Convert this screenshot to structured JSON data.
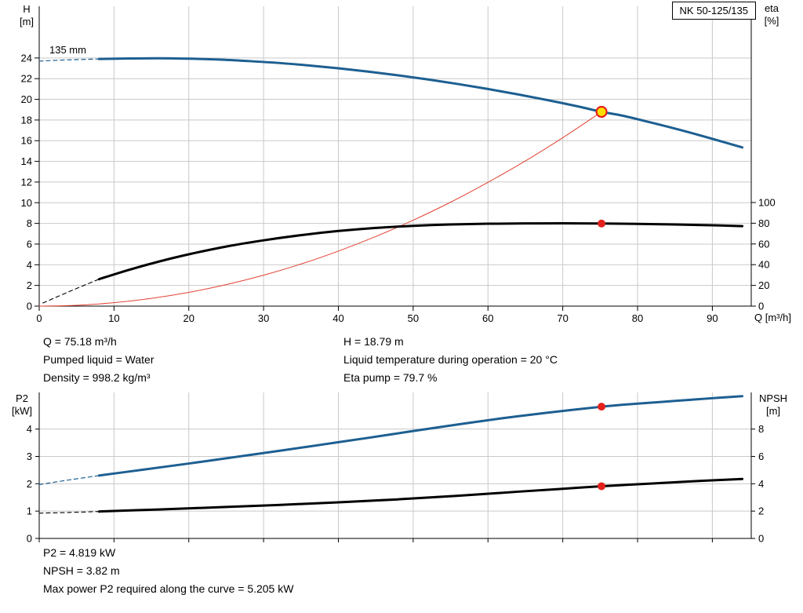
{
  "top_chart": {
    "pump_name": "NK 50-125/135",
    "impeller_label": "135 mm",
    "left_axis_title_1": "H",
    "left_axis_title_2": "[m]",
    "right_axis_title_1": "eta",
    "right_axis_title_2": "[%]",
    "x_axis_title": "Q [m³/h]"
  },
  "bottom_chart": {
    "left_axis_title_1": "P2",
    "left_axis_title_2": "[kW]",
    "right_axis_title_1": "NPSH",
    "right_axis_title_2": "[m]"
  },
  "top_info": {
    "col1": [
      "Q = 75.18 m³/h",
      "Pumped liquid = Water",
      "Density = 998.2 kg/m³"
    ],
    "col2": [
      "H = 18.79 m",
      "Liquid temperature during operation = 20 °C",
      "Eta pump = 79.7 %"
    ]
  },
  "bottom_info": [
    "P2 = 4.819 kW",
    "NPSH = 3.82 m",
    "Max power P2 required along the curve = 5.205 kW"
  ],
  "colors": {
    "grid": "#c9c9c9",
    "axis": "#000000",
    "curve_blue": "#1d5f91",
    "curve_black": "#000000",
    "system_red": "#e34234",
    "duty_yellow": "#ffdf00",
    "duty_red": "#e3211c"
  },
  "chart_data": [
    {
      "id": "hq",
      "type": "line",
      "title": "NK 50-125/135 — head (H) and efficiency (eta) vs flow (Q)",
      "xlabel": "Q [m³/h]",
      "ylabel_left": "H [m]",
      "ylabel_right": "eta [%]",
      "legend": "none",
      "grid": true,
      "x": {
        "min": 0,
        "max": 95.2,
        "ticks": [
          0,
          10,
          20,
          30,
          40,
          50,
          60,
          70,
          80,
          90
        ],
        "show_tick_labels": true
      },
      "y_left": {
        "min": 0,
        "max": 29,
        "ticks": [
          0,
          2,
          4,
          6,
          8,
          10,
          12,
          14,
          16,
          18,
          20,
          22,
          24
        ]
      },
      "y_right": {
        "min": 0,
        "max": 289.4,
        "ticks": [
          0,
          20,
          40,
          60,
          80,
          100
        ]
      },
      "series": [
        {
          "name": "h-curve-dashed-extension",
          "axis": "left",
          "color": "#1d5f91",
          "width": 1.2,
          "dashed": true,
          "x": [
            0,
            4,
            8
          ],
          "y": [
            23.7,
            23.82,
            23.9
          ]
        },
        {
          "name": "eta-curve-dashed-extension",
          "axis": "right",
          "color": "#000000",
          "width": 1.1,
          "dashed": true,
          "x": [
            0.5,
            4,
            8
          ],
          "y": [
            3,
            14,
            26
          ]
        },
        {
          "name": "duty-parabola",
          "axis": "left",
          "color": "#e34234",
          "width": 1,
          "dashed": false,
          "x": [
            0,
            5,
            10,
            15,
            20,
            25,
            30,
            35,
            40,
            45,
            50,
            55,
            60,
            65,
            70,
            75.18
          ],
          "y": [
            0,
            0.08,
            0.33,
            0.75,
            1.33,
            2.08,
            2.99,
            4.07,
            5.32,
            6.73,
            8.31,
            10.05,
            11.97,
            14.04,
            16.29,
            18.79
          ]
        },
        {
          "name": "eta-curve",
          "axis": "right",
          "color": "#000000",
          "width": 3,
          "dashed": false,
          "x": [
            8,
            12,
            16,
            20,
            25,
            30,
            35,
            40,
            45,
            50,
            55,
            60,
            65,
            70,
            75.18,
            80,
            85,
            90,
            94
          ],
          "y": [
            26,
            35,
            43,
            50,
            57.5,
            63.5,
            68.5,
            72.5,
            75.5,
            77.5,
            78.8,
            79.5,
            79.8,
            79.9,
            79.7,
            79.4,
            78.8,
            78,
            77.2
          ]
        },
        {
          "name": "h-curve",
          "axis": "left",
          "color": "#1d5f91",
          "width": 3,
          "dashed": false,
          "x": [
            8,
            12,
            16,
            20,
            24,
            28,
            32,
            36,
            40,
            44,
            48,
            52,
            56,
            60,
            64,
            68,
            72,
            75.18,
            78,
            82,
            86,
            90,
            94
          ],
          "y": [
            23.9,
            23.95,
            23.97,
            23.93,
            23.85,
            23.7,
            23.52,
            23.28,
            23.0,
            22.68,
            22.32,
            21.92,
            21.48,
            21.0,
            20.48,
            19.92,
            19.32,
            18.79,
            18.42,
            17.72,
            16.98,
            16.18,
            15.35
          ]
        }
      ],
      "markers": [
        {
          "name": "duty-point-h",
          "axis": "left",
          "x": 75.18,
          "y": 18.79,
          "r": 6.5,
          "fill": "#ffdf00",
          "stroke": "#e3211c",
          "stroke_width": 2.2
        },
        {
          "name": "duty-point-eta",
          "axis": "right",
          "x": 75.18,
          "y": 79.7,
          "r": 5,
          "fill": "#e3211c",
          "stroke": "none",
          "stroke_width": 0
        }
      ]
    },
    {
      "id": "pn",
      "type": "line",
      "title": "Shaft power (P2) and NPSH vs flow (Q)",
      "xlabel": "Q [m³/h]",
      "ylabel_left": "P2 [kW]",
      "ylabel_right": "NPSH [m]",
      "legend": "none",
      "grid": true,
      "x": {
        "min": 0,
        "max": 95.2,
        "ticks": [
          0,
          10,
          20,
          30,
          40,
          50,
          60,
          70,
          80,
          90
        ],
        "show_tick_labels": false
      },
      "y_left": {
        "min": 0,
        "max": 5.34,
        "ticks": [
          0,
          1,
          2,
          3,
          4
        ]
      },
      "y_right": {
        "min": 0,
        "max": 10.68,
        "ticks": [
          0,
          2,
          4,
          6,
          8
        ]
      },
      "series": [
        {
          "name": "p2-curve-dashed-extension",
          "axis": "left",
          "color": "#1d5f91",
          "width": 1.2,
          "dashed": true,
          "x": [
            0,
            4,
            8
          ],
          "y": [
            1.97,
            2.14,
            2.3
          ]
        },
        {
          "name": "npsh-curve-dashed-extension",
          "axis": "right",
          "color": "#000000",
          "width": 1.1,
          "dashed": true,
          "x": [
            0,
            4,
            8
          ],
          "y": [
            1.85,
            1.9,
            1.97
          ]
        },
        {
          "name": "npsh-curve",
          "axis": "right",
          "color": "#000000",
          "width": 3,
          "dashed": false,
          "x": [
            8,
            16,
            24,
            32,
            40,
            48,
            56,
            64,
            70,
            75.18,
            82,
            88,
            94
          ],
          "y": [
            1.97,
            2.12,
            2.28,
            2.45,
            2.64,
            2.86,
            3.12,
            3.42,
            3.63,
            3.82,
            4.02,
            4.2,
            4.35
          ]
        },
        {
          "name": "p2-curve",
          "axis": "left",
          "color": "#1d5f91",
          "width": 3,
          "dashed": false,
          "x": [
            8,
            14,
            20,
            26,
            32,
            38,
            44,
            50,
            56,
            62,
            68,
            75.18,
            80,
            85,
            90,
            94
          ],
          "y": [
            2.3,
            2.52,
            2.74,
            2.97,
            3.2,
            3.44,
            3.68,
            3.93,
            4.17,
            4.4,
            4.6,
            4.819,
            4.93,
            5.03,
            5.13,
            5.205
          ]
        }
      ],
      "markers": [
        {
          "name": "duty-point-p2",
          "axis": "left",
          "x": 75.18,
          "y": 4.819,
          "r": 5,
          "fill": "#e3211c",
          "stroke": "none",
          "stroke_width": 0
        },
        {
          "name": "duty-point-npsh",
          "axis": "right",
          "x": 75.18,
          "y": 3.82,
          "r": 5,
          "fill": "#e3211c",
          "stroke": "none",
          "stroke_width": 0
        }
      ]
    }
  ]
}
